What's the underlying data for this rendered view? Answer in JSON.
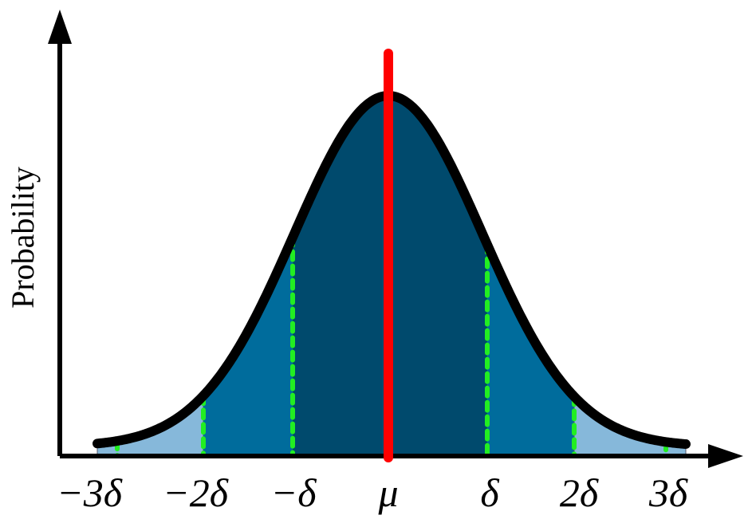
{
  "y_axis_label": "Probability",
  "x_labels": [
    "−3δ",
    "−2δ",
    "−δ",
    "μ",
    "δ",
    "2δ",
    "3δ"
  ]
}
